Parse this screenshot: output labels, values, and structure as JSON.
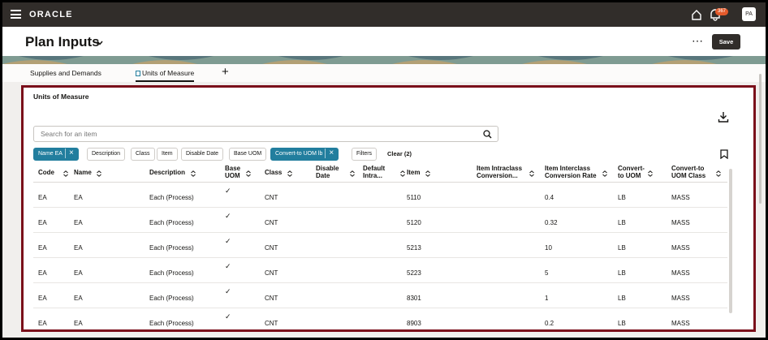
{
  "app": {
    "logo": "ORACLE",
    "notifications": "367",
    "avatar": "PA"
  },
  "header": {
    "title": "Plan Inputs",
    "more": "⋯",
    "save_label": "Save"
  },
  "tabs": [
    {
      "label": "Supplies and Demands"
    },
    {
      "label": "Units of Measure"
    }
  ],
  "add_tab": "+",
  "panel": {
    "title": "Units of Measure",
    "search": {
      "placeholder": "Search for an item",
      "value": ""
    },
    "filters": [
      {
        "label": "Name EA",
        "active": true
      },
      {
        "label": "Description",
        "active": false
      },
      {
        "label": "Class",
        "active": false
      },
      {
        "label": "Item",
        "active": false
      },
      {
        "label": "Disable Date",
        "active": false
      },
      {
        "label": "Base UOM",
        "active": false
      },
      {
        "label": "Convert-to UOM lb",
        "active": true
      },
      {
        "label": "Filters",
        "active": false
      }
    ],
    "clear_label": "Clear (2)"
  },
  "table": {
    "columns": [
      {
        "l1": "Code",
        "l2": ""
      },
      {
        "l1": "Name",
        "l2": ""
      },
      {
        "l1": "Description",
        "l2": ""
      },
      {
        "l1": "Base",
        "l2": "UOM"
      },
      {
        "l1": "Class",
        "l2": ""
      },
      {
        "l1": "Disable",
        "l2": "Date"
      },
      {
        "l1": "Default",
        "l2": "Intra..."
      },
      {
        "l1": "Item",
        "l2": ""
      },
      {
        "l1": "Item Intraclass",
        "l2": "Conversion..."
      },
      {
        "l1": "Item Interclass",
        "l2": "Conversion Rate"
      },
      {
        "l1": "Convert-",
        "l2": "to UOM"
      },
      {
        "l1": "Convert-to",
        "l2": "UOM Class"
      }
    ],
    "rows": [
      {
        "code": "EA",
        "name": "EA",
        "description": "Each (Process)",
        "base_uom": "✓",
        "class": "CNT",
        "item": "5110",
        "rate": "0.4",
        "to_uom": "LB",
        "to_class": "MASS"
      },
      {
        "code": "EA",
        "name": "EA",
        "description": "Each (Process)",
        "base_uom": "✓",
        "class": "CNT",
        "item": "5120",
        "rate": "0.32",
        "to_uom": "LB",
        "to_class": "MASS"
      },
      {
        "code": "EA",
        "name": "EA",
        "description": "Each (Process)",
        "base_uom": "✓",
        "class": "CNT",
        "item": "5213",
        "rate": "10",
        "to_uom": "LB",
        "to_class": "MASS"
      },
      {
        "code": "EA",
        "name": "EA",
        "description": "Each (Process)",
        "base_uom": "✓",
        "class": "CNT",
        "item": "5223",
        "rate": "5",
        "to_uom": "LB",
        "to_class": "MASS"
      },
      {
        "code": "EA",
        "name": "EA",
        "description": "Each (Process)",
        "base_uom": "✓",
        "class": "CNT",
        "item": "8301",
        "rate": "1",
        "to_uom": "LB",
        "to_class": "MASS"
      },
      {
        "code": "EA",
        "name": "EA",
        "description": "Each (Process)",
        "base_uom": "✓",
        "class": "CNT",
        "item": "8903",
        "rate": "0.2",
        "to_uom": "LB",
        "to_class": "MASS"
      }
    ]
  },
  "colors": {
    "topbar": "#312d2a",
    "accent": "#227e9e",
    "highlight_border": "#7a0e1a"
  }
}
